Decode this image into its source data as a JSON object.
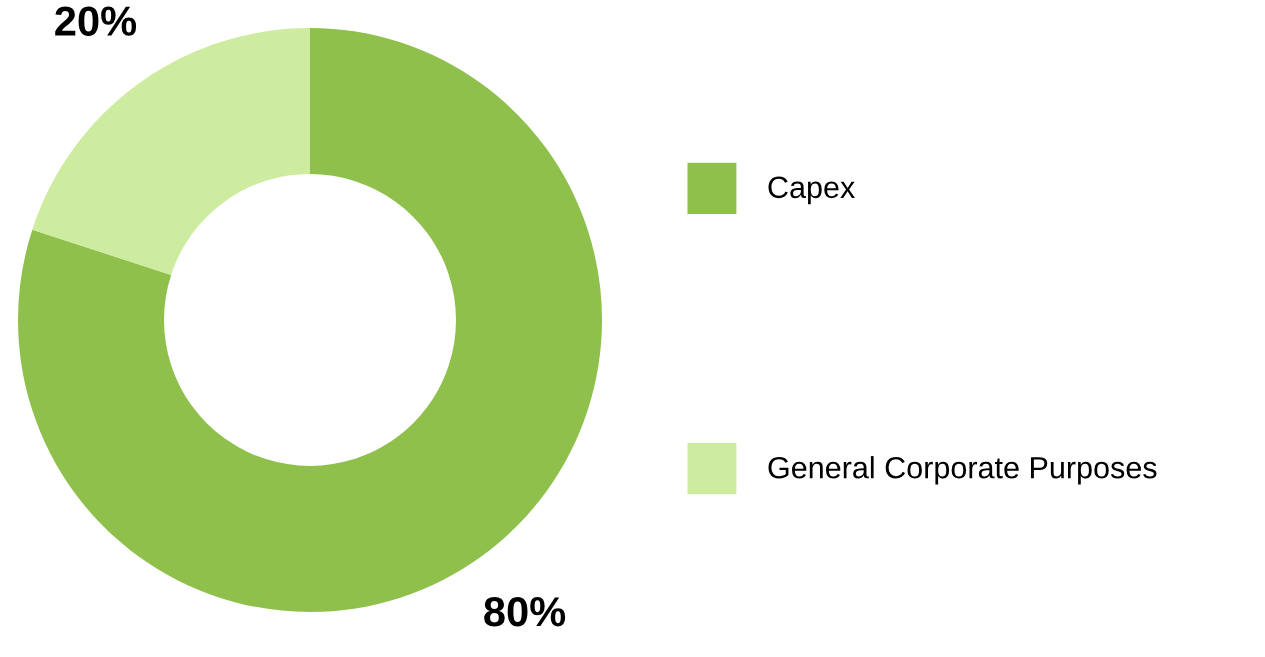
{
  "chart_data": {
    "type": "donut",
    "categories": [
      "Capex",
      "General Corporate Purposes"
    ],
    "values": [
      80,
      20
    ],
    "colors": [
      "#8fc04b",
      "#cdeca0"
    ],
    "value_labels": [
      "80%",
      "20%"
    ],
    "legend": "right"
  }
}
